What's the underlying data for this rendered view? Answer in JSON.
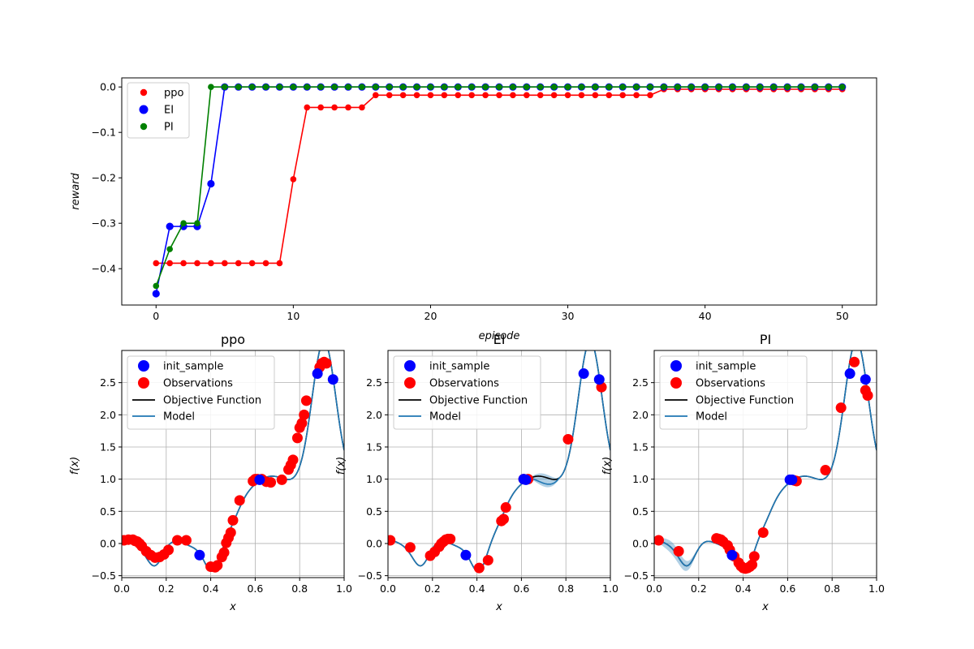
{
  "chart_data": [
    {
      "type": "line",
      "xlabel": "episode",
      "ylabel": "reward",
      "xlim": [
        -2.5,
        52.5
      ],
      "ylim": [
        -0.48,
        0.02
      ],
      "xticks": [
        0,
        10,
        20,
        30,
        40,
        50
      ],
      "yticks": [
        0.0,
        -0.1,
        -0.2,
        -0.3,
        -0.4
      ],
      "xtick_labels": [
        "0",
        "10",
        "20",
        "30",
        "40",
        "50"
      ],
      "ytick_labels": [
        "0.0",
        "−0.1",
        "−0.2",
        "−0.3",
        "−0.4"
      ],
      "legend": [
        "ppo",
        "EI",
        "PI"
      ],
      "legend_position": "upper-left",
      "series": [
        {
          "name": "ppo",
          "color": "#ff0000",
          "x": [
            0,
            1,
            2,
            3,
            4,
            5,
            6,
            7,
            8,
            9,
            10,
            11,
            12,
            13,
            14,
            15,
            16,
            17,
            18,
            19,
            20,
            21,
            22,
            23,
            24,
            25,
            26,
            27,
            28,
            29,
            30,
            31,
            32,
            33,
            34,
            35,
            36,
            37,
            38,
            39,
            40,
            41,
            42,
            43,
            44,
            45,
            46,
            47,
            48,
            49,
            50
          ],
          "values": [
            -0.388,
            -0.388,
            -0.388,
            -0.388,
            -0.388,
            -0.388,
            -0.388,
            -0.388,
            -0.388,
            -0.388,
            -0.203,
            -0.045,
            -0.045,
            -0.045,
            -0.045,
            -0.045,
            -0.018,
            -0.018,
            -0.018,
            -0.018,
            -0.018,
            -0.018,
            -0.018,
            -0.018,
            -0.018,
            -0.018,
            -0.018,
            -0.018,
            -0.018,
            -0.018,
            -0.018,
            -0.018,
            -0.018,
            -0.018,
            -0.018,
            -0.018,
            -0.018,
            -0.005,
            -0.005,
            -0.005,
            -0.005,
            -0.005,
            -0.005,
            -0.005,
            -0.005,
            -0.005,
            -0.005,
            -0.005,
            -0.005,
            -0.005,
            -0.005
          ]
        },
        {
          "name": "EI",
          "color": "#0000ff",
          "x": [
            0,
            1,
            2,
            3,
            4,
            5,
            6,
            7,
            8,
            9,
            10,
            11,
            12,
            13,
            14,
            15,
            16,
            17,
            18,
            19,
            20,
            21,
            22,
            23,
            24,
            25,
            26,
            27,
            28,
            29,
            30,
            31,
            32,
            33,
            34,
            35,
            36,
            37,
            38,
            39,
            40,
            41,
            42,
            43,
            44,
            45,
            46,
            47,
            48,
            49,
            50
          ],
          "values": [
            -0.455,
            -0.307,
            -0.307,
            -0.307,
            -0.213,
            0,
            0,
            0,
            0,
            0,
            0,
            0,
            0,
            0,
            0,
            0,
            0,
            0,
            0,
            0,
            0,
            0,
            0,
            0,
            0,
            0,
            0,
            0,
            0,
            0,
            0,
            0,
            0,
            0,
            0,
            0,
            0,
            0,
            0,
            0,
            0,
            0,
            0,
            0,
            0,
            0,
            0,
            0,
            0,
            0,
            0
          ]
        },
        {
          "name": "PI",
          "color": "#008000",
          "x": [
            0,
            1,
            2,
            3,
            4,
            5,
            6,
            7,
            8,
            9,
            10,
            11,
            12,
            13,
            14,
            15,
            16,
            17,
            18,
            19,
            20,
            21,
            22,
            23,
            24,
            25,
            26,
            27,
            28,
            29,
            30,
            31,
            32,
            33,
            34,
            35,
            36,
            37,
            38,
            39,
            40,
            41,
            42,
            43,
            44,
            45,
            46,
            47,
            48,
            49,
            50
          ],
          "values": [
            -0.438,
            -0.357,
            -0.3,
            -0.3,
            0,
            0,
            0,
            0,
            0,
            0,
            0,
            0,
            0,
            0,
            0,
            0,
            0,
            0,
            0,
            0,
            0,
            0,
            0,
            0,
            0,
            0,
            0,
            0,
            0,
            0,
            0,
            0,
            0,
            0,
            0,
            0,
            0,
            0,
            0,
            0,
            0,
            0,
            0,
            0,
            0,
            0,
            0,
            0,
            0,
            0,
            0
          ]
        }
      ]
    },
    {
      "type": "line",
      "title": "ppo",
      "xlabel": "x",
      "ylabel": "f(x)",
      "xlim": [
        0,
        1
      ],
      "ylim": [
        -0.53,
        3.0
      ],
      "legend": [
        "init_sample",
        "Observations",
        "Objective Function",
        "Model"
      ],
      "init_sample": [
        [
          0.35,
          -0.18
        ],
        [
          0.62,
          0.99
        ],
        [
          0.88,
          2.64
        ],
        [
          0.95,
          2.55
        ]
      ],
      "observations": [
        [
          0.01,
          0.05
        ],
        [
          0.03,
          0.06
        ],
        [
          0.05,
          0.06
        ],
        [
          0.06,
          0.04
        ],
        [
          0.07,
          0.03
        ],
        [
          0.08,
          0.0
        ],
        [
          0.09,
          -0.04
        ],
        [
          0.11,
          -0.12
        ],
        [
          0.13,
          -0.18
        ],
        [
          0.15,
          -0.22
        ],
        [
          0.17,
          -0.21
        ],
        [
          0.19,
          -0.17
        ],
        [
          0.21,
          -0.1
        ],
        [
          0.25,
          0.05
        ],
        [
          0.29,
          0.05
        ],
        [
          0.4,
          -0.36
        ],
        [
          0.42,
          -0.37
        ],
        [
          0.43,
          -0.34
        ],
        [
          0.45,
          -0.21
        ],
        [
          0.46,
          -0.14
        ],
        [
          0.47,
          0.01
        ],
        [
          0.48,
          0.09
        ],
        [
          0.49,
          0.17
        ],
        [
          0.5,
          0.36
        ],
        [
          0.53,
          0.67
        ],
        [
          0.59,
          0.97
        ],
        [
          0.6,
          1.0
        ],
        [
          0.61,
          1.0
        ],
        [
          0.63,
          1.0
        ],
        [
          0.65,
          0.96
        ],
        [
          0.67,
          0.95
        ],
        [
          0.72,
          0.99
        ],
        [
          0.75,
          1.15
        ],
        [
          0.76,
          1.22
        ],
        [
          0.77,
          1.3
        ],
        [
          0.79,
          1.64
        ],
        [
          0.8,
          1.8
        ],
        [
          0.81,
          1.87
        ],
        [
          0.82,
          2.0
        ],
        [
          0.83,
          2.22
        ],
        [
          0.89,
          2.74
        ],
        [
          0.9,
          2.8
        ],
        [
          0.91,
          2.82
        ],
        [
          0.92,
          2.8
        ]
      ],
      "uncertainty_regions": []
    },
    {
      "type": "line",
      "title": "EI",
      "xlabel": "x",
      "ylabel": "f(x)",
      "xlim": [
        0,
        1
      ],
      "ylim": [
        -0.53,
        3.0
      ],
      "legend": [
        "init_sample",
        "Observations",
        "Objective Function",
        "Model"
      ],
      "init_sample": [
        [
          0.35,
          -0.18
        ],
        [
          0.61,
          1.0
        ],
        [
          0.62,
          0.99
        ],
        [
          0.88,
          2.64
        ],
        [
          0.95,
          2.55
        ]
      ],
      "observations": [
        [
          0.01,
          0.05
        ],
        [
          0.1,
          -0.06
        ],
        [
          0.19,
          -0.19
        ],
        [
          0.21,
          -0.13
        ],
        [
          0.23,
          -0.05
        ],
        [
          0.24,
          0.0
        ],
        [
          0.25,
          0.03
        ],
        [
          0.26,
          0.06
        ],
        [
          0.27,
          0.07
        ],
        [
          0.28,
          0.07
        ],
        [
          0.41,
          -0.38
        ],
        [
          0.45,
          -0.26
        ],
        [
          0.51,
          0.35
        ],
        [
          0.52,
          0.38
        ],
        [
          0.53,
          0.56
        ],
        [
          0.61,
          1.0
        ],
        [
          0.63,
          1.0
        ],
        [
          0.81,
          1.62
        ],
        [
          0.96,
          2.43
        ]
      ],
      "uncertainty_regions": [
        [
          0.64,
          0.77
        ]
      ]
    },
    {
      "type": "line",
      "title": "PI",
      "xlabel": "x",
      "ylabel": "f(x)",
      "xlim": [
        0,
        1
      ],
      "ylim": [
        -0.53,
        3.0
      ],
      "legend": [
        "init_sample",
        "Observations",
        "Objective Function",
        "Model"
      ],
      "init_sample": [
        [
          0.35,
          -0.18
        ],
        [
          0.61,
          0.99
        ],
        [
          0.62,
          0.99
        ],
        [
          0.88,
          2.64
        ],
        [
          0.95,
          2.55
        ]
      ],
      "observations": [
        [
          0.02,
          0.05
        ],
        [
          0.11,
          -0.12
        ],
        [
          0.28,
          0.08
        ],
        [
          0.29,
          0.07
        ],
        [
          0.3,
          0.06
        ],
        [
          0.31,
          0.03
        ],
        [
          0.33,
          -0.03
        ],
        [
          0.34,
          -0.1
        ],
        [
          0.36,
          -0.2
        ],
        [
          0.38,
          -0.3
        ],
        [
          0.39,
          -0.35
        ],
        [
          0.4,
          -0.38
        ],
        [
          0.41,
          -0.39
        ],
        [
          0.42,
          -0.38
        ],
        [
          0.43,
          -0.36
        ],
        [
          0.44,
          -0.33
        ],
        [
          0.45,
          -0.2
        ],
        [
          0.49,
          0.17
        ],
        [
          0.63,
          0.98
        ],
        [
          0.64,
          0.97
        ],
        [
          0.77,
          1.14
        ],
        [
          0.84,
          2.11
        ],
        [
          0.9,
          2.82
        ],
        [
          0.95,
          2.38
        ],
        [
          0.96,
          2.3
        ]
      ],
      "uncertainty_regions": [
        [
          0.0,
          0.2
        ]
      ]
    }
  ],
  "common": {
    "tick_labels_y_sub": [
      "−0.5",
      "0.0",
      "0.5",
      "1.0",
      "1.5",
      "2.0",
      "2.5"
    ],
    "tick_values_y_sub": [
      -0.5,
      0.0,
      0.5,
      1.0,
      1.5,
      2.0,
      2.5
    ],
    "tick_labels_x_sub": [
      "0.0",
      "0.2",
      "0.4",
      "0.6",
      "0.8",
      "1.0"
    ],
    "tick_values_x_sub": [
      0.0,
      0.2,
      0.4,
      0.6,
      0.8,
      1.0
    ]
  },
  "colors": {
    "ppo": "#ff0000",
    "EI": "#0000ff",
    "PI": "#008000",
    "init_sample": "#0000ff",
    "observations": "#ff0000",
    "objective": "#000000",
    "model": "#1f77b4",
    "band": "#1f77b4",
    "grid": "#b0b0b0"
  }
}
